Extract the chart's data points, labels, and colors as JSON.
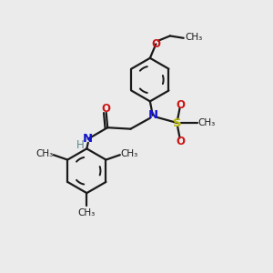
{
  "bg_color": "#ebebeb",
  "bond_color": "#1a1a1a",
  "N_color": "#1414cc",
  "O_color": "#cc1414",
  "S_color": "#b8b800",
  "H_color": "#5a8a8a",
  "line_width": 1.6,
  "font_size": 8.5,
  "figsize": [
    3.0,
    3.0
  ],
  "dpi": 100,
  "xlim": [
    0,
    10
  ],
  "ylim": [
    0,
    10
  ]
}
